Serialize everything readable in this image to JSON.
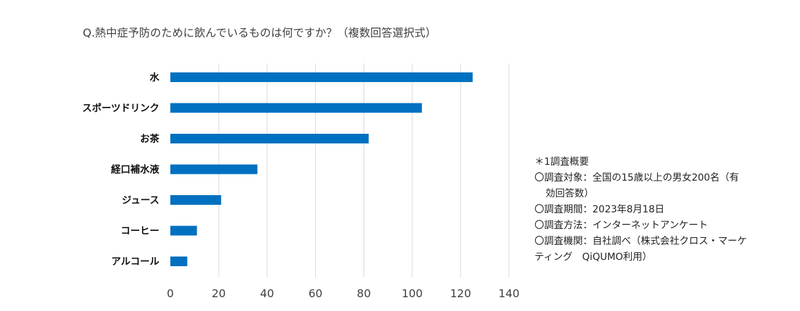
{
  "chart_data": {
    "type": "bar",
    "orientation": "horizontal",
    "title": "Q.熱中症予防のために飲んでいるものは何ですか？（複数回答選択式）",
    "categories": [
      "水",
      "スポーツドリンク",
      "お茶",
      "経口補水液",
      "ジュース",
      "コーヒー",
      "アルコール"
    ],
    "values": [
      125,
      104,
      82,
      36,
      21,
      11,
      7
    ],
    "xlim": [
      0,
      140
    ],
    "xticks": [
      "0",
      "20",
      "40",
      "60",
      "80",
      "100",
      "120",
      "140"
    ],
    "grid": true,
    "color": "#0070c0"
  },
  "notes": {
    "heading": "＊1調査概要",
    "target_line1": "〇調査対象：全国の15歳以上の男女200名（有",
    "target_line2": "効回答数）",
    "period": "〇調査期間：2023年8月18日",
    "method": "〇調査方法：インターネットアンケート",
    "org_line1": "〇調査機関：自社調べ（株式会社クロス・マーケ",
    "org_line2": "ティング　QiQUMO利用）"
  }
}
